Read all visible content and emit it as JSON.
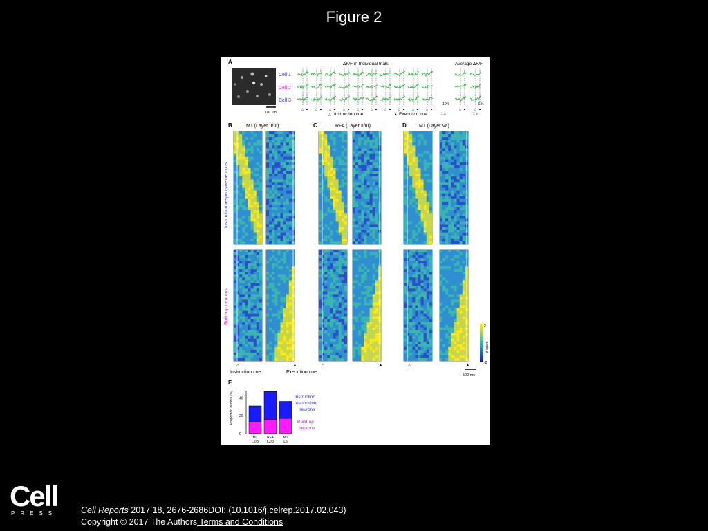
{
  "page": {
    "title": "Figure 2"
  },
  "figure": {
    "panelA": {
      "label": "A",
      "scalebar_label": "100 μm",
      "cells": [
        "Cell 1",
        "Cell 2",
        "Cell 3"
      ],
      "cell_colors": [
        "#2d2dff",
        "#e020e0",
        "#2d2dff"
      ],
      "trials_title": "ΔF/F in Individual trials",
      "average_title": "Average ΔF/F",
      "legend_instruction": "Instruction cue",
      "legend_execution": "Execution cue",
      "scale_pct_trials": "10%",
      "scale_time_trials": "1 s",
      "scale_pct_avg": "5 %",
      "scale_time_avg": "1 s"
    },
    "panelB": {
      "label": "B",
      "title": "M1 (Layer II/III)"
    },
    "panelC": {
      "label": "C",
      "title": "RFA (Layer II/III)"
    },
    "panelD": {
      "label": "D",
      "title": "M1 (Layer Va)"
    },
    "row_labels": {
      "instruction": "Instruction responsive neurons",
      "buildup": "Build-up neurons"
    },
    "row_label_colors": {
      "instruction": "#2d2dff",
      "buildup": "#e020e0"
    },
    "cue_labels": {
      "instruction": "Instruction cue",
      "execution": "Execution cue"
    },
    "colorbar": {
      "max": "2",
      "min": "-2",
      "label": "z-score"
    },
    "time_scale": "500 ms",
    "panelE": {
      "label": "E",
      "legend_instruction": "Instruction responsive neurons",
      "legend_buildup": "Build-up neurons"
    },
    "chart_data": {
      "type": "bar",
      "categories": [
        "M1 L2/3",
        "RFA L2/3",
        "M1 L5"
      ],
      "series": [
        {
          "name": "Build-up neurons",
          "values": [
            13,
            16,
            17
          ],
          "color": "#ff1aff"
        },
        {
          "name": "Instruction responsive neurons",
          "values": [
            18,
            31,
            19
          ],
          "color": "#1a1aff"
        }
      ],
      "stacked": true,
      "ylabel": "Proportion of cells (%)",
      "yticks": [
        0,
        20,
        40
      ],
      "ylim": [
        0,
        48
      ]
    }
  },
  "footer": {
    "logo_word": "Cell",
    "logo_press": "PRESS",
    "journal": "Cell Reports",
    "citation": " 2017 18, 2676-2686DOI: (10.1016/j.celrep.2017.02.043)",
    "copyright": "Copyright © 2017 The Authors",
    "terms_link": " Terms and Conditions"
  }
}
